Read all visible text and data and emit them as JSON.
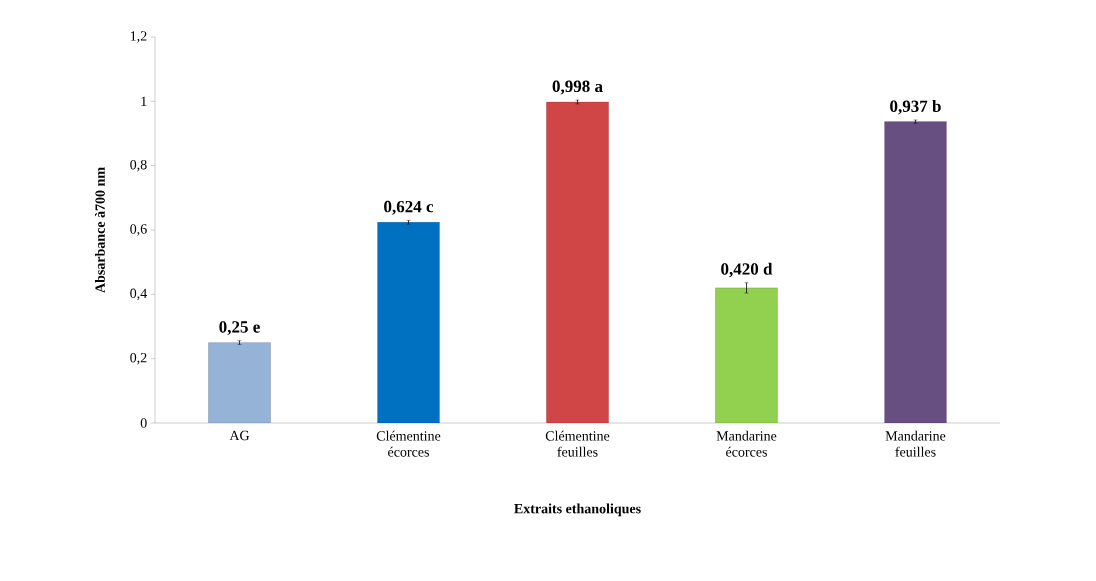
{
  "chart_data": {
    "type": "bar",
    "xlabel": "Extraits ethanoliques",
    "ylabel": "Absarbance à700 nm",
    "categories": [
      "AG",
      "Clémentine écorces",
      "Clémentine feuilles",
      "Mandarine écorces",
      "Mandarine feuilles"
    ],
    "values": [
      0.25,
      0.624,
      0.998,
      0.42,
      0.937
    ],
    "errors": [
      0.006,
      0.006,
      0.006,
      0.016,
      0.005
    ],
    "value_labels": [
      "0,25 e",
      "0,624 c",
      "0,998 a",
      "0,420 d",
      "0,937 b"
    ],
    "colors": [
      "#95b3d7",
      "#0070c0",
      "#d04545",
      "#92d050",
      "#674f82"
    ],
    "ylim": [
      0,
      1.2
    ],
    "yticks": [
      0,
      {
        "value": 0.2,
        "label": "0,2"
      },
      {
        "value": 0.4,
        "label": "0,4"
      },
      {
        "value": 0.6,
        "label": "0,6"
      },
      {
        "value": 0.8,
        "label": "0,8"
      },
      1,
      {
        "value": 1.2,
        "label": "1,2"
      }
    ],
    "grid": false
  }
}
